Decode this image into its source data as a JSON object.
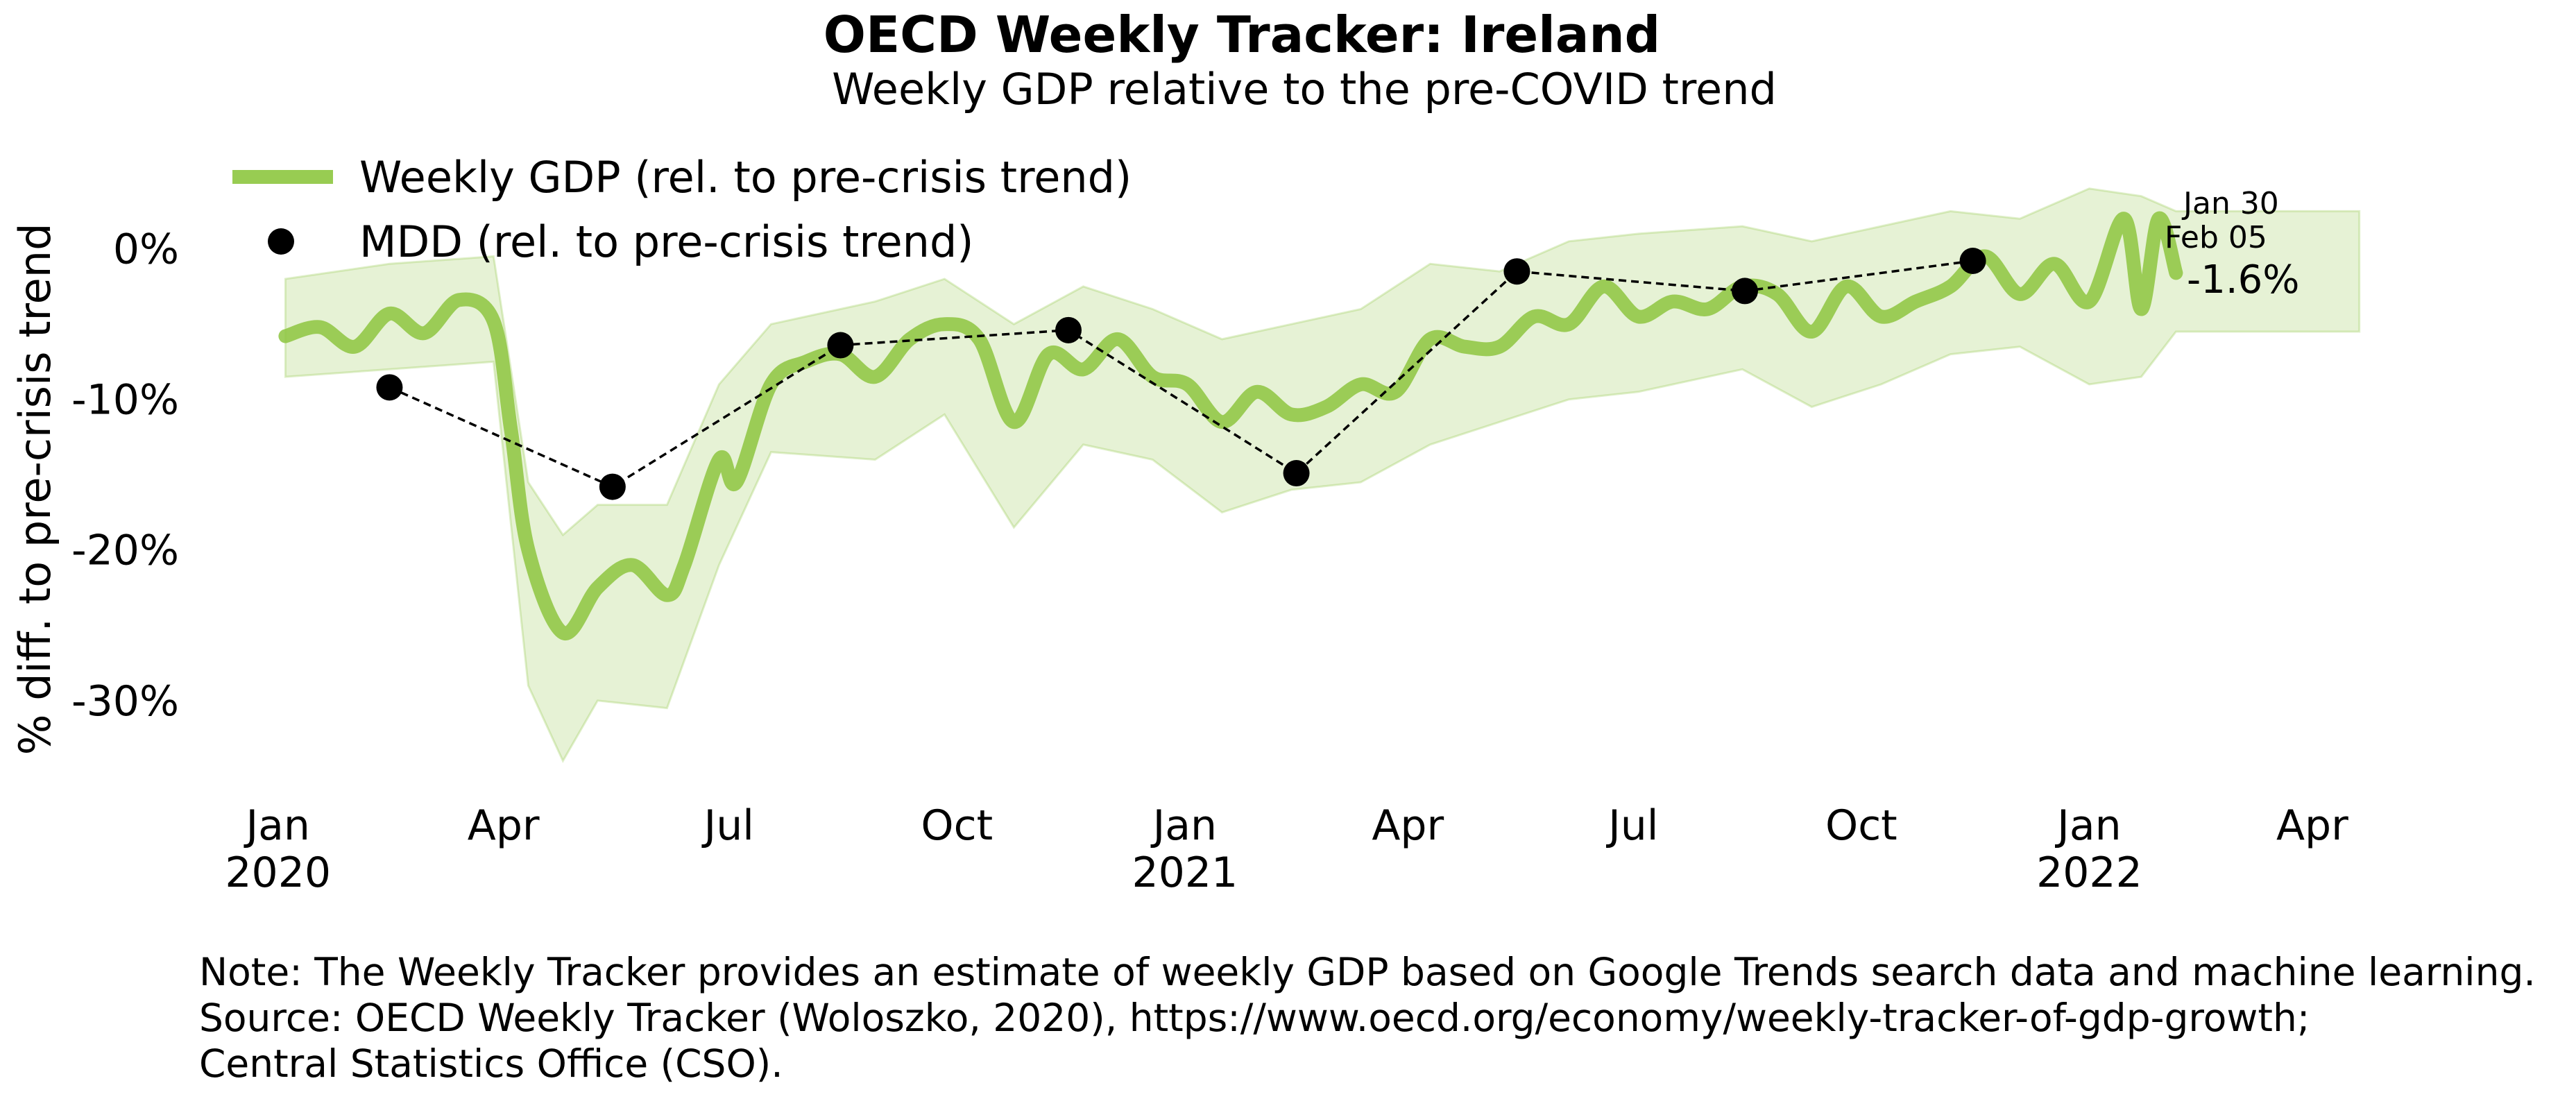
{
  "chart_data": {
    "type": "line",
    "title": "OECD Weekly Tracker: Ireland",
    "subtitle": "Weekly GDP relative to the pre-COVID trend",
    "ylabel": "% diff. to pre-crisis trend",
    "ylim": [
      -36,
      8
    ],
    "yticks": [
      0,
      -10,
      -20,
      -30
    ],
    "ytick_labels": [
      "0%",
      "-10%",
      "-20%",
      "-30%"
    ],
    "xlim": [
      "2019-12-15",
      "2022-05-01"
    ],
    "xticks": [
      {
        "date": "2020-01-01",
        "label1": "Jan",
        "label2": "2020"
      },
      {
        "date": "2020-04-01",
        "label1": "Apr",
        "label2": ""
      },
      {
        "date": "2020-07-01",
        "label1": "Jul",
        "label2": ""
      },
      {
        "date": "2020-10-01",
        "label1": "Oct",
        "label2": ""
      },
      {
        "date": "2021-01-01",
        "label1": "Jan",
        "label2": "2021"
      },
      {
        "date": "2021-04-01",
        "label1": "Apr",
        "label2": ""
      },
      {
        "date": "2021-07-01",
        "label1": "Jul",
        "label2": ""
      },
      {
        "date": "2021-10-01",
        "label1": "Oct",
        "label2": ""
      },
      {
        "date": "2022-01-01",
        "label1": "Jan",
        "label2": "2022"
      },
      {
        "date": "2022-04-01",
        "label1": "Apr",
        "label2": ""
      }
    ],
    "grid": false,
    "legend_position": "top-left",
    "series": [
      {
        "name": "Weekly GDP (rel. to pre-crisis trend)",
        "kind": "line",
        "color": "#8dc63f",
        "points": [
          [
            "2020-01-04",
            -5.8
          ],
          [
            "2020-01-18",
            -5.2
          ],
          [
            "2020-02-01",
            -6.5
          ],
          [
            "2020-02-15",
            -4.3
          ],
          [
            "2020-02-29",
            -5.6
          ],
          [
            "2020-03-14",
            -3.4
          ],
          [
            "2020-03-28",
            -4.8
          ],
          [
            "2020-04-04",
            -12.0
          ],
          [
            "2020-04-11",
            -20.0
          ],
          [
            "2020-04-25",
            -25.5
          ],
          [
            "2020-05-09",
            -22.5
          ],
          [
            "2020-05-23",
            -21.0
          ],
          [
            "2020-06-06",
            -23.0
          ],
          [
            "2020-06-13",
            -21.0
          ],
          [
            "2020-06-27",
            -14.0
          ],
          [
            "2020-07-04",
            -15.5
          ],
          [
            "2020-07-18",
            -9.0
          ],
          [
            "2020-08-01",
            -7.5
          ],
          [
            "2020-08-15",
            -7.0
          ],
          [
            "2020-08-29",
            -8.5
          ],
          [
            "2020-09-12",
            -6.0
          ],
          [
            "2020-09-26",
            -5.0
          ],
          [
            "2020-10-10",
            -6.0
          ],
          [
            "2020-10-24",
            -11.5
          ],
          [
            "2020-11-07",
            -7.0
          ],
          [
            "2020-11-21",
            -8.0
          ],
          [
            "2020-12-05",
            -6.0
          ],
          [
            "2020-12-19",
            -8.5
          ],
          [
            "2021-01-02",
            -9.0
          ],
          [
            "2021-01-16",
            -11.5
          ],
          [
            "2021-01-30",
            -9.5
          ],
          [
            "2021-02-13",
            -11.0
          ],
          [
            "2021-02-27",
            -10.5
          ],
          [
            "2021-03-13",
            -9.0
          ],
          [
            "2021-03-27",
            -9.5
          ],
          [
            "2021-04-10",
            -6.0
          ],
          [
            "2021-04-24",
            -6.5
          ],
          [
            "2021-05-08",
            -6.5
          ],
          [
            "2021-05-22",
            -4.5
          ],
          [
            "2021-06-05",
            -5.0
          ],
          [
            "2021-06-19",
            -2.5
          ],
          [
            "2021-07-03",
            -4.5
          ],
          [
            "2021-07-17",
            -3.5
          ],
          [
            "2021-07-31",
            -4.0
          ],
          [
            "2021-08-14",
            -2.5
          ],
          [
            "2021-08-28",
            -3.0
          ],
          [
            "2021-09-11",
            -5.5
          ],
          [
            "2021-09-25",
            -2.5
          ],
          [
            "2021-10-09",
            -4.5
          ],
          [
            "2021-10-23",
            -3.5
          ],
          [
            "2021-11-06",
            -2.5
          ],
          [
            "2021-11-20",
            -0.5
          ],
          [
            "2021-12-04",
            -3.0
          ],
          [
            "2021-12-18",
            -1.0
          ],
          [
            "2022-01-01",
            -3.5
          ],
          [
            "2022-01-15",
            2.0
          ],
          [
            "2022-01-22",
            -4.0
          ],
          [
            "2022-01-29",
            2.0
          ],
          [
            "2022-02-05",
            -1.6
          ]
        ]
      },
      {
        "name": "Uncertainty band",
        "kind": "band",
        "color": "#8dc63f",
        "lower": [
          [
            "2020-01-04",
            -8.5
          ],
          [
            "2020-02-15",
            -8.0
          ],
          [
            "2020-03-28",
            -7.5
          ],
          [
            "2020-04-11",
            -29.0
          ],
          [
            "2020-04-25",
            -34.0
          ],
          [
            "2020-05-09",
            -30.0
          ],
          [
            "2020-06-06",
            -30.5
          ],
          [
            "2020-06-27",
            -21.0
          ],
          [
            "2020-07-18",
            -13.5
          ],
          [
            "2020-08-29",
            -14.0
          ],
          [
            "2020-09-26",
            -11.0
          ],
          [
            "2020-10-24",
            -18.5
          ],
          [
            "2020-11-21",
            -13.0
          ],
          [
            "2020-12-19",
            -14.0
          ],
          [
            "2021-01-16",
            -17.5
          ],
          [
            "2021-02-13",
            -16.0
          ],
          [
            "2021-03-13",
            -15.5
          ],
          [
            "2021-04-10",
            -13.0
          ],
          [
            "2021-05-08",
            -11.5
          ],
          [
            "2021-06-05",
            -10.0
          ],
          [
            "2021-07-03",
            -9.5
          ],
          [
            "2021-08-14",
            -8.0
          ],
          [
            "2021-09-11",
            -10.5
          ],
          [
            "2021-10-09",
            -9.0
          ],
          [
            "2021-11-06",
            -7.0
          ],
          [
            "2021-12-04",
            -6.5
          ],
          [
            "2022-01-01",
            -9.0
          ],
          [
            "2022-01-22",
            -8.5
          ],
          [
            "2022-02-05",
            -5.5
          ],
          [
            "2022-04-20",
            -5.5
          ]
        ],
        "upper": [
          [
            "2020-01-04",
            -2.0
          ],
          [
            "2020-02-15",
            -1.0
          ],
          [
            "2020-03-28",
            -0.5
          ],
          [
            "2020-04-11",
            -15.5
          ],
          [
            "2020-04-25",
            -19.0
          ],
          [
            "2020-05-09",
            -17.0
          ],
          [
            "2020-06-06",
            -17.0
          ],
          [
            "2020-06-27",
            -9.0
          ],
          [
            "2020-07-18",
            -5.0
          ],
          [
            "2020-08-29",
            -3.5
          ],
          [
            "2020-09-26",
            -2.0
          ],
          [
            "2020-10-24",
            -5.0
          ],
          [
            "2020-11-21",
            -2.5
          ],
          [
            "2020-12-19",
            -4.0
          ],
          [
            "2021-01-16",
            -6.0
          ],
          [
            "2021-02-13",
            -5.0
          ],
          [
            "2021-03-13",
            -4.0
          ],
          [
            "2021-04-10",
            -1.0
          ],
          [
            "2021-05-08",
            -1.5
          ],
          [
            "2021-06-05",
            0.5
          ],
          [
            "2021-07-03",
            1.0
          ],
          [
            "2021-08-14",
            1.5
          ],
          [
            "2021-09-11",
            0.5
          ],
          [
            "2021-10-09",
            1.5
          ],
          [
            "2021-11-06",
            2.5
          ],
          [
            "2021-12-04",
            2.0
          ],
          [
            "2022-01-01",
            4.0
          ],
          [
            "2022-01-22",
            3.5
          ],
          [
            "2022-02-05",
            2.5
          ],
          [
            "2022-04-20",
            2.5
          ]
        ]
      },
      {
        "name": "MDD (rel. to pre-crisis trend)",
        "kind": "scatter-line",
        "color": "#000000",
        "points": [
          [
            "2020-02-15",
            -9.2
          ],
          [
            "2020-05-15",
            -15.8
          ],
          [
            "2020-08-15",
            -6.4
          ],
          [
            "2020-11-15",
            -5.4
          ],
          [
            "2021-02-15",
            -14.9
          ],
          [
            "2021-05-15",
            -1.5
          ],
          [
            "2021-08-15",
            -2.8
          ],
          [
            "2021-11-15",
            -0.8
          ]
        ]
      }
    ],
    "annotations": {
      "last_date_1": "Jan 30",
      "last_date_2": "Feb 05",
      "last_value": "-1.6%"
    },
    "note": {
      "line1": "Note: The Weekly Tracker provides an estimate of weekly GDP based on Google Trends search data and machine learning.",
      "line2": "Source: OECD Weekly Tracker (Woloszko, 2020), https://www.oecd.org/economy/weekly-tracker-of-gdp-growth;",
      "line3": "Central Statistics Office (CSO)."
    }
  }
}
